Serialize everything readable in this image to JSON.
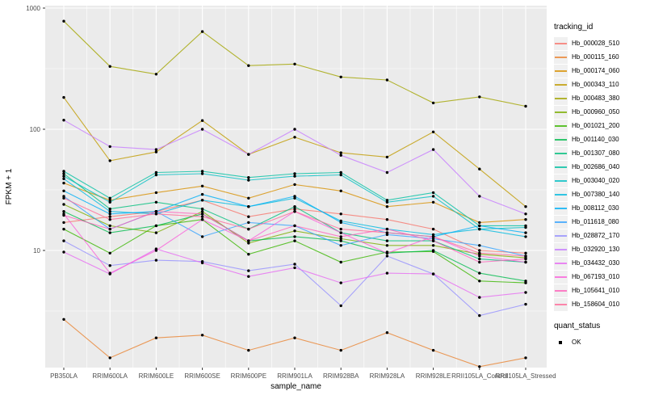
{
  "legend": {
    "tracking_title": "tracking_id",
    "quant_title": "quant_status",
    "quant_items": [
      {
        "label": "OK"
      }
    ]
  },
  "chart_data": {
    "type": "line",
    "title": "",
    "xlabel": "sample_name",
    "ylabel": "FPKM + 1",
    "y_scale": "log10",
    "ylim": [
      1.05,
      1050
    ],
    "y_ticks": [
      10,
      100,
      1000
    ],
    "y_tick_labels": [
      "10",
      "100",
      "1000"
    ],
    "y_minor_ticks": [
      3.162,
      31.62,
      316.2
    ],
    "grid": true,
    "legend_position": "right",
    "panel_bg": "#EBEBEB",
    "grid_color": "#FFFFFF",
    "tick_label_color": "#4D4D4D",
    "point_color": "#000000",
    "line_opacity": 0.8,
    "categories": [
      "PB350LA",
      "RRIM600LA",
      "RRIM600LE",
      "RRIM600SE",
      "RRIM600PE",
      "RRIM901LA",
      "RRIM928BA",
      "RRIM928LA",
      "RRIM928LE",
      "RRII105LA_Control",
      "RRII105LA_Stressed"
    ],
    "series": [
      {
        "name": "Hb_000028_510",
        "color": "#F8766D",
        "values": [
          17,
          19,
          21,
          26,
          19,
          22,
          20,
          18,
          15,
          10,
          9.5
        ]
      },
      {
        "name": "Hb_000115_160",
        "color": "#EA8331",
        "values": [
          2.7,
          1.3,
          1.9,
          2.0,
          1.5,
          1.9,
          1.5,
          2.1,
          1.5,
          1.1,
          1.3
        ]
      },
      {
        "name": "Hb_000174_060",
        "color": "#D89000",
        "values": [
          36,
          26,
          30,
          34,
          27,
          35,
          31,
          23,
          25,
          17,
          18
        ]
      },
      {
        "name": "Hb_000343_110",
        "color": "#C09B00",
        "values": [
          183,
          55,
          65,
          118,
          62,
          86,
          64,
          59,
          95,
          47,
          23
        ]
      },
      {
        "name": "Hb_000483_380",
        "color": "#A3A500",
        "values": [
          780,
          330,
          285,
          640,
          335,
          345,
          270,
          255,
          165,
          185,
          155
        ]
      },
      {
        "name": "Hb_000960_050",
        "color": "#7CAE00",
        "values": [
          24,
          16,
          14,
          21,
          11.5,
          14.5,
          12.5,
          11,
          11,
          9.3,
          8.7
        ]
      },
      {
        "name": "Hb_001021_200",
        "color": "#39B600",
        "values": [
          15,
          9.5,
          16,
          18,
          9.3,
          12,
          8,
          9.7,
          9.8,
          5.6,
          5.4
        ]
      },
      {
        "name": "Hb_001140_030",
        "color": "#00BB4E",
        "values": [
          21,
          14,
          16,
          20,
          12,
          13,
          12,
          9.5,
          10,
          6.5,
          5.6
        ]
      },
      {
        "name": "Hb_001307_080",
        "color": "#00BF7D",
        "values": [
          43,
          22,
          25,
          22,
          15,
          23,
          14,
          12,
          12,
          8.5,
          8
        ]
      },
      {
        "name": "Hb_002686_040",
        "color": "#00C1A3",
        "values": [
          45,
          27,
          44,
          45,
          40,
          43,
          44,
          26,
          30,
          16,
          16
        ]
      },
      {
        "name": "Hb_003040_020",
        "color": "#00BFC4",
        "values": [
          41,
          25,
          42,
          43,
          38,
          41,
          42,
          25,
          28,
          15,
          15.5
        ]
      },
      {
        "name": "Hb_007380_140",
        "color": "#00BAE0",
        "values": [
          39,
          21,
          20,
          26,
          23,
          27,
          17.5,
          15,
          13.5,
          15,
          13
        ]
      },
      {
        "name": "Hb_008112_030",
        "color": "#00B0F6",
        "values": [
          31,
          20,
          21,
          29,
          23,
          28,
          17,
          14,
          13,
          16,
          14
        ]
      },
      {
        "name": "Hb_011618_080",
        "color": "#35A2FF",
        "values": [
          28,
          15,
          21,
          13,
          17,
          16,
          11,
          13.5,
          12.5,
          11,
          9
        ]
      },
      {
        "name": "Hb_028872_170",
        "color": "#9590FF",
        "values": [
          12,
          7.5,
          8.3,
          8.1,
          6.8,
          7.7,
          3.5,
          9,
          6.4,
          2.9,
          3.6
        ]
      },
      {
        "name": "Hb_032920_130",
        "color": "#C77CFF",
        "values": [
          119,
          72,
          68,
          100,
          62,
          100,
          61,
          44,
          68,
          28,
          20
        ]
      },
      {
        "name": "Hb_034432_030",
        "color": "#E76BF3",
        "values": [
          9.7,
          6.4,
          10.3,
          7.9,
          6.1,
          7.2,
          5.4,
          6.5,
          6.4,
          4.1,
          4.5
        ]
      },
      {
        "name": "Hb_067193_010",
        "color": "#FA62DB",
        "values": [
          20,
          6.5,
          10,
          18,
          12,
          21,
          14,
          9.5,
          13,
          9,
          8
        ]
      },
      {
        "name": "Hb_105641_010",
        "color": "#FF62BC",
        "values": [
          19.5,
          15,
          21,
          20,
          12,
          16,
          13,
          15,
          12,
          8,
          8.5
        ]
      },
      {
        "name": "Hb_158604_010",
        "color": "#FF6A98",
        "values": [
          27,
          18,
          20,
          19,
          15,
          21,
          15,
          14,
          13,
          9.5,
          9
        ]
      }
    ]
  }
}
